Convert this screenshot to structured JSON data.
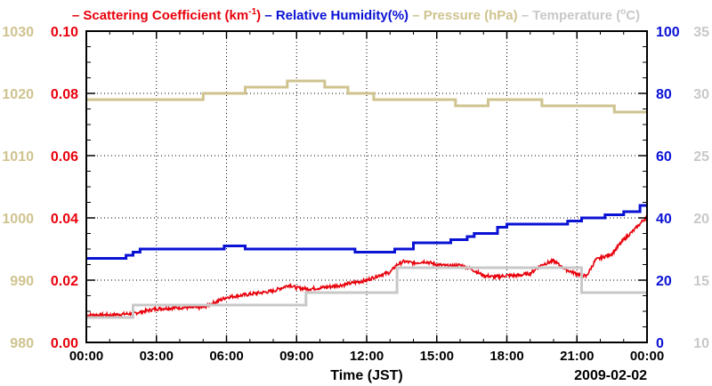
{
  "chart_data": {
    "type": "line",
    "title_parts": [
      {
        "text": "– Scattering Coefficient (km",
        "sup": "-1",
        "after": ")",
        "color": "#e8000b"
      },
      {
        "text": "– Relative Humidity(%)",
        "color": "#0a12d4"
      },
      {
        "text": "– Pressure (hPa)",
        "color": "#cfc38f"
      },
      {
        "text": "– Temperature (",
        "sup": "o",
        "after": "C)",
        "color": "#c8c8c8"
      }
    ],
    "xlabel": "Time (JST)",
    "date_label": "2009-02-02",
    "x_ticks": [
      "00:00",
      "03:00",
      "06:00",
      "09:00",
      "12:00",
      "15:00",
      "18:00",
      "21:00",
      "00:00"
    ],
    "xlim": [
      0,
      24
    ],
    "grid": true,
    "axes": {
      "pressure": {
        "side": "left-outer",
        "color": "#cfc38f",
        "ylim": [
          980,
          1030
        ],
        "ticks": [
          "980",
          "990",
          "1000",
          "1010",
          "1020",
          "1030"
        ]
      },
      "scattering": {
        "side": "left-inner",
        "color": "#e8000b",
        "ylim": [
          0,
          0.1
        ],
        "ticks": [
          "0.00",
          "0.02",
          "0.04",
          "0.06",
          "0.08",
          "0.10"
        ]
      },
      "humidity": {
        "side": "right-inner",
        "color": "#0a12d4",
        "ylim": [
          0,
          100
        ],
        "ticks": [
          "0",
          "20",
          "40",
          "60",
          "80",
          "100"
        ]
      },
      "temperature": {
        "side": "right-outer",
        "color": "#c8c8c8",
        "ylim": [
          10,
          35
        ],
        "ticks": [
          "10",
          "15",
          "20",
          "25",
          "30",
          "35"
        ]
      }
    },
    "series": [
      {
        "name": "Scattering Coefficient",
        "axis": "scattering",
        "color": "#e8000b",
        "noisy": true,
        "x": [
          0,
          1,
          2,
          3,
          4,
          5,
          6,
          7,
          8,
          8.7,
          9,
          9.5,
          10,
          11,
          12,
          12.5,
          13,
          13.3,
          13.6,
          14,
          14.5,
          15,
          15.5,
          16,
          16.5,
          17,
          17.5,
          18,
          18.5,
          19,
          19.5,
          20,
          20.5,
          21,
          21.4,
          21.8,
          22.5,
          23,
          23.5,
          24
        ],
        "y": [
          0.0088,
          0.0088,
          0.0093,
          0.0108,
          0.0112,
          0.0112,
          0.0145,
          0.0155,
          0.0165,
          0.0185,
          0.0175,
          0.0172,
          0.0175,
          0.0185,
          0.02,
          0.0215,
          0.0225,
          0.025,
          0.026,
          0.0255,
          0.026,
          0.025,
          0.0245,
          0.0248,
          0.0235,
          0.0215,
          0.021,
          0.0215,
          0.0215,
          0.0222,
          0.025,
          0.0262,
          0.0235,
          0.022,
          0.0212,
          0.0265,
          0.0285,
          0.033,
          0.0365,
          0.0405
        ]
      },
      {
        "name": "Relative Humidity",
        "axis": "humidity",
        "color": "#0a12d4",
        "step": true,
        "x": [
          0,
          1,
          1.7,
          2,
          2.3,
          4.7,
          5.6,
          5.9,
          6.8,
          10.7,
          11.5,
          12.2,
          12.9,
          13.2,
          13.5,
          14,
          15.2,
          15.6,
          16.3,
          16.6,
          17,
          17.6,
          18,
          19,
          19.9,
          20.6,
          21.2,
          22.2,
          23,
          23.7,
          24
        ],
        "y": [
          27,
          27,
          28,
          29,
          30,
          30,
          30,
          31,
          30,
          30,
          29,
          29,
          29,
          30,
          30,
          32,
          32,
          33,
          34,
          35,
          35,
          37,
          38,
          38,
          38,
          39,
          40,
          41,
          42,
          44,
          44
        ]
      },
      {
        "name": "Pressure",
        "axis": "pressure",
        "color": "#cfc38f",
        "step": true,
        "x": [
          0,
          2,
          4.5,
          5,
          6.8,
          8.6,
          10.2,
          11.2,
          12.3,
          14,
          15.8,
          16.7,
          17.2,
          19,
          19.5,
          21.8,
          22.6,
          24
        ],
        "y": [
          1019,
          1019,
          1019,
          1020,
          1021,
          1022,
          1021,
          1020,
          1019,
          1019,
          1018,
          1018,
          1019,
          1019,
          1018,
          1018,
          1017,
          1017
        ]
      },
      {
        "name": "Temperature",
        "axis": "temperature",
        "color": "#c8c8c8",
        "step": true,
        "x": [
          0,
          1.9,
          2,
          9.3,
          9.4,
          13.2,
          13.3,
          21.1,
          21.2,
          24
        ],
        "y": [
          12,
          12,
          13,
          13,
          14,
          14,
          16,
          16,
          14,
          14
        ]
      }
    ]
  }
}
